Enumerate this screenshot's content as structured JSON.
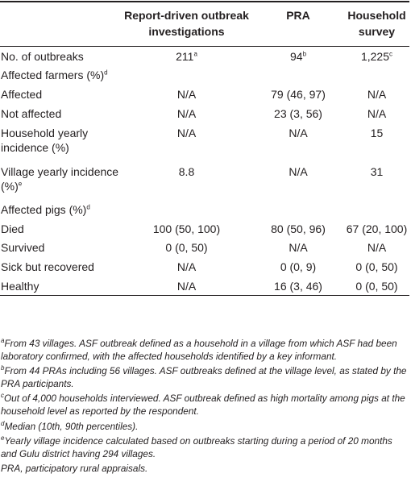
{
  "table": {
    "headers": [
      "",
      "Report-driven outbreak investigations",
      "PRA",
      "Household survey"
    ],
    "rows": [
      {
        "label": "No. of outbreaks",
        "c1": "211",
        "c1sup": "a",
        "c2": "94",
        "c2sup": "b",
        "c3": "1,225",
        "c3sup": "c"
      },
      {
        "label": "Affected farmers (%)",
        "labelsup": "d",
        "c1": "",
        "c2": "",
        "c3": ""
      },
      {
        "label": "Affected",
        "c1": "N/A",
        "c2": "79 (46, 97)",
        "c3": "N/A"
      },
      {
        "label": "Not affected",
        "c1": "N/A",
        "c2": "23 (3, 56)",
        "c3": "N/A"
      },
      {
        "label": "Household yearly incidence (%)",
        "c1": "N/A",
        "c2": "N/A",
        "c3": "15"
      },
      {
        "label": "Village yearly incidence (%)",
        "labelsup": "e",
        "c1": "8.8",
        "c2": "N/A",
        "c3": "31"
      },
      {
        "label": "Affected pigs (%)",
        "labelsup": "d",
        "c1": "",
        "c2": "",
        "c3": ""
      },
      {
        "label": "Died",
        "c1": "100 (50, 100)",
        "c2": "80 (50, 96)",
        "c3": "67 (20, 100)"
      },
      {
        "label": "Survived",
        "c1": "0 (0, 50)",
        "c2": "N/A",
        "c3": "N/A"
      },
      {
        "label": "Sick but recovered",
        "c1": "N/A",
        "c2": "0 (0, 9)",
        "c3": "0 (0, 50)"
      },
      {
        "label": "Healthy",
        "c1": "N/A",
        "c2": "16 (3, 46)",
        "c3": "0 (0, 50)"
      }
    ]
  },
  "footnotes": [
    {
      "mark": "a",
      "text": "From 43 villages. ASF outbreak defined as a household in a village from which ASF had been laboratory confirmed, with the affected households identified by a key informant."
    },
    {
      "mark": "b",
      "text": "From 44 PRAs including 56 villages. ASF outbreaks defined at the village level, as stated by the PRA participants."
    },
    {
      "mark": "c",
      "text": "Out of 4,000 households interviewed. ASF outbreak defined as high mortality among pigs at the household level as reported by the respondent."
    },
    {
      "mark": "d",
      "text": "Median (10th, 90th percentiles)."
    },
    {
      "mark": "e",
      "text": "Yearly village incidence calculated based on outbreaks starting during a period of 20 months and Gulu district having 294 villages."
    },
    {
      "mark": "",
      "text": "PRA, participatory rural appraisals."
    }
  ]
}
